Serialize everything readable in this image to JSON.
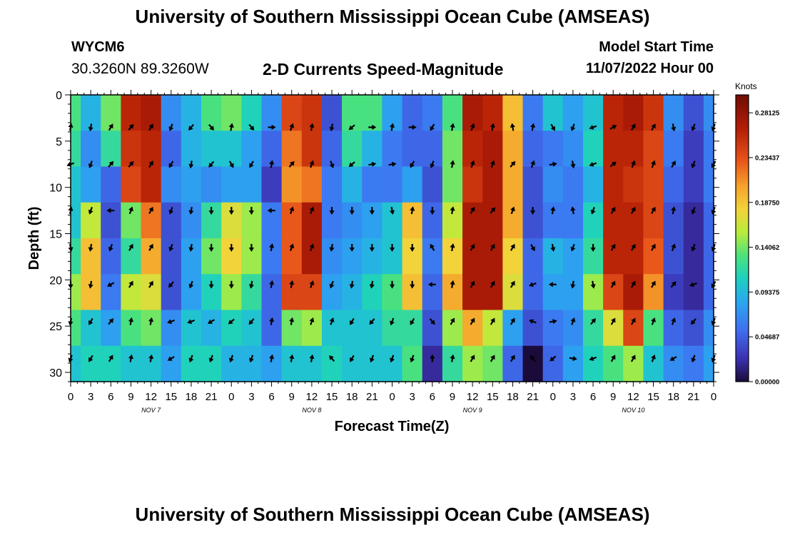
{
  "header": {
    "title": "University of Southern Mississippi Ocean Cube (AMSEAS)",
    "station_id": "WYCM6",
    "station_coords": "30.3260N  89.3260W",
    "plot_title": "2-D Currents Speed-Magnitude",
    "start_label": "Model Start Time",
    "start_value": "11/07/2022 Hour 00"
  },
  "footer": {
    "title": "University of Southern Mississippi Ocean Cube (AMSEAS)"
  },
  "chart_data": {
    "type": "heatmap",
    "title": "2-D Currents Speed-Magnitude",
    "xlabel": "Forecast Time(Z)",
    "ylabel": "Depth (ft)",
    "x_hours_range": [
      0,
      96
    ],
    "ylim": [
      0,
      31
    ],
    "y_ticks": [
      0,
      5,
      10,
      15,
      20,
      25,
      30
    ],
    "x_tick_labels": [
      "0",
      "3",
      "6",
      "9",
      "12",
      "15",
      "18",
      "21",
      "0",
      "3",
      "6",
      "9",
      "12",
      "15",
      "18",
      "21",
      "0",
      "3",
      "6",
      "9",
      "12",
      "15",
      "18",
      "21",
      "0",
      "3",
      "6",
      "9",
      "12",
      "15",
      "18",
      "21",
      "0"
    ],
    "day_labels": [
      {
        "label": "NOV 7",
        "hour": 12
      },
      {
        "label": "NOV 8",
        "hour": 36
      },
      {
        "label": "NOV 9",
        "hour": 60
      },
      {
        "label": "NOV 10",
        "hour": 84
      }
    ],
    "colorbar": {
      "unit": "Knots",
      "min": 0.0,
      "max": 0.3,
      "tick_values": [
        0.28125,
        0.234375,
        0.1875,
        0.140625,
        0.09375,
        0.046875,
        0.0
      ],
      "tick_labels": [
        "0.28125",
        "0.23437",
        "0.18750",
        "0.14062",
        "0.09375",
        "0.04687",
        "0.00000"
      ]
    },
    "speed_columns": [
      {
        "hour": 0,
        "speeds": [
          0.13,
          0.12,
          0.1,
          0.1,
          0.12,
          0.15,
          0.13,
          0.1
        ]
      },
      {
        "hour": 3,
        "speeds": [
          0.09,
          0.07,
          0.08,
          0.16,
          0.19,
          0.19,
          0.1,
          0.11
        ]
      },
      {
        "hour": 6,
        "speeds": [
          0.14,
          0.12,
          0.05,
          0.04,
          0.05,
          0.06,
          0.08,
          0.11
        ]
      },
      {
        "hour": 9,
        "speeds": [
          0.26,
          0.25,
          0.24,
          0.14,
          0.12,
          0.16,
          0.13,
          0.1
        ]
      },
      {
        "hour": 12,
        "speeds": [
          0.27,
          0.26,
          0.26,
          0.22,
          0.2,
          0.17,
          0.14,
          0.1
        ]
      },
      {
        "hour": 15,
        "speeds": [
          0.07,
          0.05,
          0.07,
          0.04,
          0.04,
          0.04,
          0.07,
          0.08
        ]
      },
      {
        "hour": 18,
        "speeds": [
          0.09,
          0.09,
          0.08,
          0.07,
          0.08,
          0.08,
          0.1,
          0.11
        ]
      },
      {
        "hour": 21,
        "speeds": [
          0.13,
          0.1,
          0.07,
          0.12,
          0.14,
          0.11,
          0.09,
          0.11
        ]
      },
      {
        "hour": 24,
        "speeds": [
          0.14,
          0.1,
          0.08,
          0.17,
          0.18,
          0.15,
          0.11,
          0.09
        ]
      },
      {
        "hour": 27,
        "speeds": [
          0.11,
          0.08,
          0.08,
          0.15,
          0.15,
          0.12,
          0.1,
          0.09
        ]
      },
      {
        "hour": 30,
        "speeds": [
          0.07,
          0.05,
          0.03,
          0.06,
          0.06,
          0.05,
          0.05,
          0.08
        ]
      },
      {
        "hour": 33,
        "speeds": [
          0.24,
          0.22,
          0.21,
          0.23,
          0.23,
          0.24,
          0.14,
          0.1
        ]
      },
      {
        "hour": 36,
        "speeds": [
          0.25,
          0.25,
          0.22,
          0.27,
          0.27,
          0.24,
          0.15,
          0.1
        ]
      },
      {
        "hour": 39,
        "speeds": [
          0.04,
          0.05,
          0.06,
          0.06,
          0.07,
          0.08,
          0.1,
          0.11
        ]
      },
      {
        "hour": 42,
        "speeds": [
          0.13,
          0.12,
          0.09,
          0.07,
          0.08,
          0.09,
          0.1,
          0.1
        ]
      },
      {
        "hour": 45,
        "speeds": [
          0.13,
          0.09,
          0.06,
          0.08,
          0.09,
          0.11,
          0.1,
          0.1
        ]
      },
      {
        "hour": 48,
        "speeds": [
          0.08,
          0.06,
          0.06,
          0.1,
          0.1,
          0.13,
          0.12,
          0.1
        ]
      },
      {
        "hour": 51,
        "speeds": [
          0.05,
          0.05,
          0.08,
          0.19,
          0.18,
          0.19,
          0.12,
          0.13
        ]
      },
      {
        "hour": 54,
        "speeds": [
          0.06,
          0.05,
          0.04,
          0.05,
          0.06,
          0.05,
          0.04,
          0.02
        ]
      },
      {
        "hour": 57,
        "speeds": [
          0.13,
          0.14,
          0.14,
          0.16,
          0.18,
          0.2,
          0.15,
          0.12
        ]
      },
      {
        "hour": 60,
        "speeds": [
          0.27,
          0.26,
          0.25,
          0.27,
          0.27,
          0.27,
          0.2,
          0.15
        ]
      },
      {
        "hour": 63,
        "speeds": [
          0.26,
          0.27,
          0.27,
          0.27,
          0.27,
          0.27,
          0.16,
          0.14
        ]
      },
      {
        "hour": 66,
        "speeds": [
          0.19,
          0.2,
          0.2,
          0.2,
          0.18,
          0.17,
          0.08,
          0.05
        ]
      },
      {
        "hour": 69,
        "speeds": [
          0.06,
          0.05,
          0.04,
          0.04,
          0.05,
          0.05,
          0.04,
          0.0
        ]
      },
      {
        "hour": 72,
        "speeds": [
          0.1,
          0.06,
          0.07,
          0.06,
          0.09,
          0.08,
          0.06,
          0.05
        ]
      },
      {
        "hour": 75,
        "speeds": [
          0.08,
          0.07,
          0.06,
          0.06,
          0.08,
          0.08,
          0.07,
          0.08
        ]
      },
      {
        "hour": 78,
        "speeds": [
          0.1,
          0.11,
          0.09,
          0.11,
          0.12,
          0.15,
          0.12,
          0.11
        ]
      },
      {
        "hour": 81,
        "speeds": [
          0.26,
          0.26,
          0.26,
          0.26,
          0.26,
          0.24,
          0.17,
          0.13
        ]
      },
      {
        "hour": 84,
        "speeds": [
          0.27,
          0.26,
          0.25,
          0.26,
          0.26,
          0.27,
          0.24,
          0.15
        ]
      },
      {
        "hour": 87,
        "speeds": [
          0.25,
          0.24,
          0.24,
          0.24,
          0.23,
          0.21,
          0.13,
          0.1
        ]
      },
      {
        "hour": 90,
        "speeds": [
          0.07,
          0.06,
          0.05,
          0.04,
          0.04,
          0.03,
          0.05,
          0.07
        ]
      },
      {
        "hour": 93,
        "speeds": [
          0.04,
          0.03,
          0.03,
          0.02,
          0.02,
          0.02,
          0.04,
          0.06
        ]
      },
      {
        "hour": 96,
        "speeds": [
          0.07,
          0.06,
          0.06,
          0.05,
          0.05,
          0.05,
          0.07,
          0.08
        ]
      }
    ],
    "vector_depths": [
      3.5,
      7.5,
      12.5,
      16.5,
      20.5,
      24.5,
      28.5
    ],
    "vector_hours": [
      0,
      3,
      6,
      9,
      12,
      15,
      18,
      21,
      24,
      27,
      30,
      33,
      36,
      39,
      42,
      45,
      48,
      51,
      54,
      57,
      60,
      63,
      66,
      69,
      72,
      75,
      78,
      81,
      84,
      87,
      90,
      93,
      96
    ],
    "vector_directions_deg": [
      [
        10,
        190,
        30,
        40,
        30,
        200,
        220,
        140,
        10,
        140,
        90,
        20,
        10,
        190,
        230,
        90,
        10,
        90,
        210,
        10,
        20,
        10,
        350,
        10,
        150,
        200,
        250,
        60,
        30,
        30,
        170,
        200,
        200
      ],
      [
        250,
        200,
        40,
        40,
        30,
        210,
        190,
        220,
        150,
        210,
        10,
        40,
        20,
        160,
        230,
        80,
        80,
        210,
        200,
        10,
        20,
        20,
        40,
        20,
        80,
        170,
        250,
        50,
        20,
        20,
        30,
        200,
        210
      ],
      [
        10,
        200,
        270,
        20,
        30,
        200,
        190,
        180,
        180,
        180,
        270,
        20,
        20,
        180,
        180,
        180,
        170,
        10,
        180,
        10,
        30,
        40,
        20,
        180,
        10,
        350,
        200,
        30,
        30,
        30,
        10,
        200,
        200
      ],
      [
        170,
        190,
        200,
        30,
        30,
        200,
        190,
        180,
        180,
        180,
        10,
        20,
        20,
        190,
        180,
        180,
        180,
        180,
        330,
        10,
        30,
        30,
        30,
        150,
        170,
        200,
        180,
        30,
        30,
        30,
        20,
        200,
        200
      ],
      [
        180,
        190,
        240,
        30,
        30,
        220,
        200,
        180,
        180,
        190,
        10,
        10,
        20,
        200,
        190,
        190,
        180,
        180,
        270,
        10,
        30,
        30,
        30,
        250,
        270,
        190,
        170,
        30,
        30,
        30,
        40,
        250,
        210
      ],
      [
        190,
        210,
        40,
        10,
        10,
        250,
        250,
        240,
        230,
        220,
        10,
        10,
        20,
        20,
        210,
        220,
        200,
        210,
        140,
        30,
        30,
        30,
        30,
        290,
        80,
        20,
        40,
        30,
        30,
        20,
        20,
        220,
        200
      ],
      [
        200,
        210,
        30,
        10,
        10,
        240,
        200,
        200,
        200,
        200,
        10,
        10,
        10,
        320,
        210,
        200,
        200,
        200,
        0,
        10,
        30,
        30,
        30,
        320,
        230,
        100,
        250,
        30,
        30,
        20,
        240,
        200,
        200
      ]
    ]
  }
}
